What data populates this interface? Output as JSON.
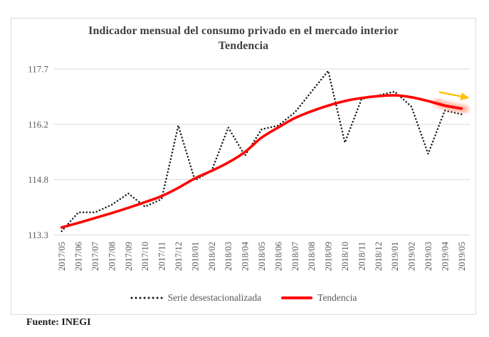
{
  "page": {
    "background_color": "#ffffff"
  },
  "chart": {
    "title_line1": "Indicador mensual del consumo privado en el mercado interior",
    "title_line2": "Tendencia",
    "source_note": "Fuente: INEGI",
    "legend": [
      {
        "label": "Serie desestacionalizada",
        "marker": "dotted-line",
        "color": "#1a1a1a"
      },
      {
        "label": "Tendencia",
        "marker": "solid-line",
        "color": "#ff0000"
      }
    ],
    "colors": {
      "trend_line": "#ff0000",
      "seasonally_adjusted_dots": "#1a1a1a",
      "gridline": "#d9d9d9",
      "axis_text": "#595959",
      "title_text": "#404040",
      "frame_border": "#d9d9d9",
      "arrow": "#ffc000",
      "highlight_glow": "#ff5a2e"
    }
  },
  "chart_data": {
    "type": "line",
    "title": "Indicador mensual del consumo privado en el mercado interior — Tendencia",
    "categories": [
      "2017/05",
      "2017/06",
      "2017/07",
      "2017/08",
      "2017/09",
      "2017/10",
      "2017/11",
      "2017/12",
      "2018/01",
      "2018/02",
      "2018/03",
      "2018/04",
      "2018/05",
      "2018/06",
      "2018/07",
      "2018/08",
      "2018/09",
      "2018/10",
      "2018/11",
      "2018/12",
      "2019/01",
      "2019/02",
      "2019/03",
      "2019/04",
      "2019/05"
    ],
    "series": [
      {
        "name": "Serie desestacionalizada",
        "style": "dotted",
        "color": "#1a1a1a",
        "values": [
          113.4,
          113.9,
          113.9,
          114.1,
          114.4,
          114.05,
          114.25,
          116.2,
          114.75,
          115.0,
          116.15,
          115.4,
          116.1,
          116.2,
          116.55,
          117.1,
          117.65,
          115.75,
          116.9,
          117.0,
          117.1,
          116.7,
          115.45,
          116.6,
          116.5
        ]
      },
      {
        "name": "Tendencia",
        "style": "solid",
        "color": "#ff0000",
        "values": [
          113.5,
          113.62,
          113.75,
          113.88,
          114.02,
          114.17,
          114.33,
          114.55,
          114.8,
          115.0,
          115.22,
          115.5,
          115.88,
          116.15,
          116.4,
          116.58,
          116.73,
          116.85,
          116.93,
          116.98,
          117.0,
          116.95,
          116.85,
          116.73,
          116.65
        ]
      }
    ],
    "ylim": [
      113.3,
      117.7
    ],
    "ytick_labels_top_to_bottom": [
      "117.7",
      "116.2",
      "114.8",
      "113.3"
    ],
    "x_tick_rotation_degrees": 90,
    "grid": true,
    "legend_position": "bottom",
    "annotations": [
      {
        "type": "arrow",
        "description": "yellow arrow pointing right near the end of the trend line",
        "color": "#ffc000"
      },
      {
        "type": "glow-highlight",
        "description": "orange glow highlighting the final trend segment (2019/03 - 2019/05)",
        "color": "#ff5a2e"
      }
    ],
    "source": "Fuente: INEGI"
  }
}
